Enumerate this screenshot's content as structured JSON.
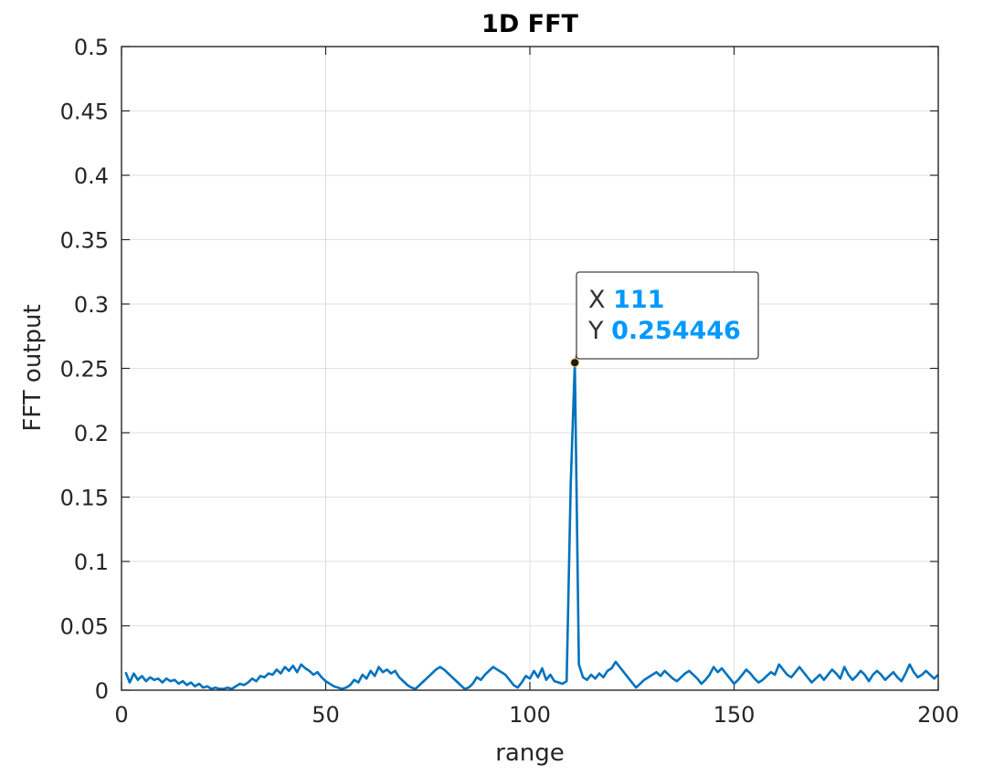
{
  "chart_data": {
    "type": "line",
    "title": "1D FFT",
    "xlabel": "range",
    "ylabel": "FFT output",
    "xlim": [
      0,
      200
    ],
    "ylim": [
      0,
      0.5
    ],
    "xticks": [
      0,
      50,
      100,
      150,
      200
    ],
    "xtick_labels": [
      "0",
      "50",
      "100",
      "150",
      "200"
    ],
    "yticks": [
      0,
      0.05,
      0.1,
      0.15,
      0.2,
      0.25,
      0.3,
      0.35,
      0.4,
      0.45,
      0.5
    ],
    "ytick_labels": [
      "0",
      "0.05",
      "0.1",
      "0.15",
      "0.2",
      "0.25",
      "0.3",
      "0.35",
      "0.4",
      "0.45",
      "0.5"
    ],
    "grid": true,
    "series": [
      {
        "color": "#0072BD",
        "x": [
          1,
          2,
          3,
          4,
          5,
          6,
          7,
          8,
          9,
          10,
          11,
          12,
          13,
          14,
          15,
          16,
          17,
          18,
          19,
          20,
          21,
          22,
          23,
          24,
          25,
          26,
          27,
          28,
          29,
          30,
          31,
          32,
          33,
          34,
          35,
          36,
          37,
          38,
          39,
          40,
          41,
          42,
          43,
          44,
          45,
          46,
          47,
          48,
          49,
          50,
          51,
          52,
          53,
          54,
          55,
          56,
          57,
          58,
          59,
          60,
          61,
          62,
          63,
          64,
          65,
          66,
          67,
          68,
          69,
          70,
          71,
          72,
          73,
          74,
          75,
          76,
          77,
          78,
          79,
          80,
          81,
          82,
          83,
          84,
          85,
          86,
          87,
          88,
          89,
          90,
          91,
          92,
          93,
          94,
          95,
          96,
          97,
          98,
          99,
          100,
          101,
          102,
          103,
          104,
          105,
          106,
          107,
          108,
          109,
          110,
          111,
          112,
          113,
          114,
          115,
          116,
          117,
          118,
          119,
          120,
          121,
          122,
          123,
          124,
          125,
          126,
          127,
          128,
          129,
          130,
          131,
          132,
          133,
          134,
          135,
          136,
          137,
          138,
          139,
          140,
          141,
          142,
          143,
          144,
          145,
          146,
          147,
          148,
          149,
          150,
          151,
          152,
          153,
          154,
          155,
          156,
          157,
          158,
          159,
          160,
          161,
          162,
          163,
          164,
          165,
          166,
          167,
          168,
          169,
          170,
          171,
          172,
          173,
          174,
          175,
          176,
          177,
          178,
          179,
          180,
          181,
          182,
          183,
          184,
          185,
          186,
          187,
          188,
          189,
          190,
          191,
          192,
          193,
          194,
          195,
          196,
          197,
          198,
          199,
          200
        ],
        "y": [
          0.014,
          0.006,
          0.013,
          0.008,
          0.011,
          0.007,
          0.01,
          0.008,
          0.009,
          0.006,
          0.009,
          0.007,
          0.008,
          0.005,
          0.007,
          0.004,
          0.006,
          0.003,
          0.005,
          0.002,
          0.003,
          0.001,
          0.002,
          0.001,
          0.001,
          0.002,
          0.001,
          0.003,
          0.005,
          0.004,
          0.006,
          0.009,
          0.007,
          0.011,
          0.01,
          0.013,
          0.012,
          0.016,
          0.013,
          0.018,
          0.015,
          0.019,
          0.014,
          0.02,
          0.017,
          0.015,
          0.012,
          0.014,
          0.01,
          0.007,
          0.005,
          0.003,
          0.002,
          0.001,
          0.002,
          0.004,
          0.008,
          0.006,
          0.012,
          0.009,
          0.015,
          0.011,
          0.018,
          0.014,
          0.016,
          0.013,
          0.015,
          0.01,
          0.007,
          0.004,
          0.002,
          0.001,
          0.004,
          0.007,
          0.01,
          0.013,
          0.016,
          0.018,
          0.016,
          0.013,
          0.01,
          0.007,
          0.004,
          0.001,
          0.002,
          0.005,
          0.01,
          0.008,
          0.012,
          0.015,
          0.018,
          0.016,
          0.014,
          0.012,
          0.008,
          0.004,
          0.002,
          0.006,
          0.011,
          0.009,
          0.015,
          0.01,
          0.017,
          0.008,
          0.012,
          0.007,
          0.006,
          0.005,
          0.007,
          0.16,
          0.254446,
          0.02,
          0.01,
          0.008,
          0.012,
          0.009,
          0.013,
          0.01,
          0.015,
          0.017,
          0.022,
          0.018,
          0.014,
          0.01,
          0.006,
          0.002,
          0.005,
          0.008,
          0.01,
          0.012,
          0.014,
          0.011,
          0.015,
          0.012,
          0.009,
          0.007,
          0.01,
          0.013,
          0.015,
          0.012,
          0.009,
          0.005,
          0.008,
          0.012,
          0.018,
          0.014,
          0.017,
          0.013,
          0.009,
          0.005,
          0.008,
          0.012,
          0.016,
          0.013,
          0.009,
          0.006,
          0.008,
          0.011,
          0.014,
          0.012,
          0.02,
          0.016,
          0.012,
          0.01,
          0.014,
          0.018,
          0.014,
          0.01,
          0.006,
          0.009,
          0.012,
          0.008,
          0.012,
          0.016,
          0.013,
          0.009,
          0.018,
          0.012,
          0.008,
          0.011,
          0.015,
          0.012,
          0.007,
          0.012,
          0.015,
          0.012,
          0.008,
          0.011,
          0.014,
          0.01,
          0.007,
          0.013,
          0.02,
          0.014,
          0.01,
          0.012,
          0.015,
          0.012,
          0.009,
          0.012
        ]
      }
    ],
    "datatip": {
      "x": 111,
      "y": 0.254446,
      "x_label": "X",
      "y_label": "Y",
      "x_text": "111",
      "y_text": "0.254446",
      "value_color": "#0099FF"
    }
  }
}
